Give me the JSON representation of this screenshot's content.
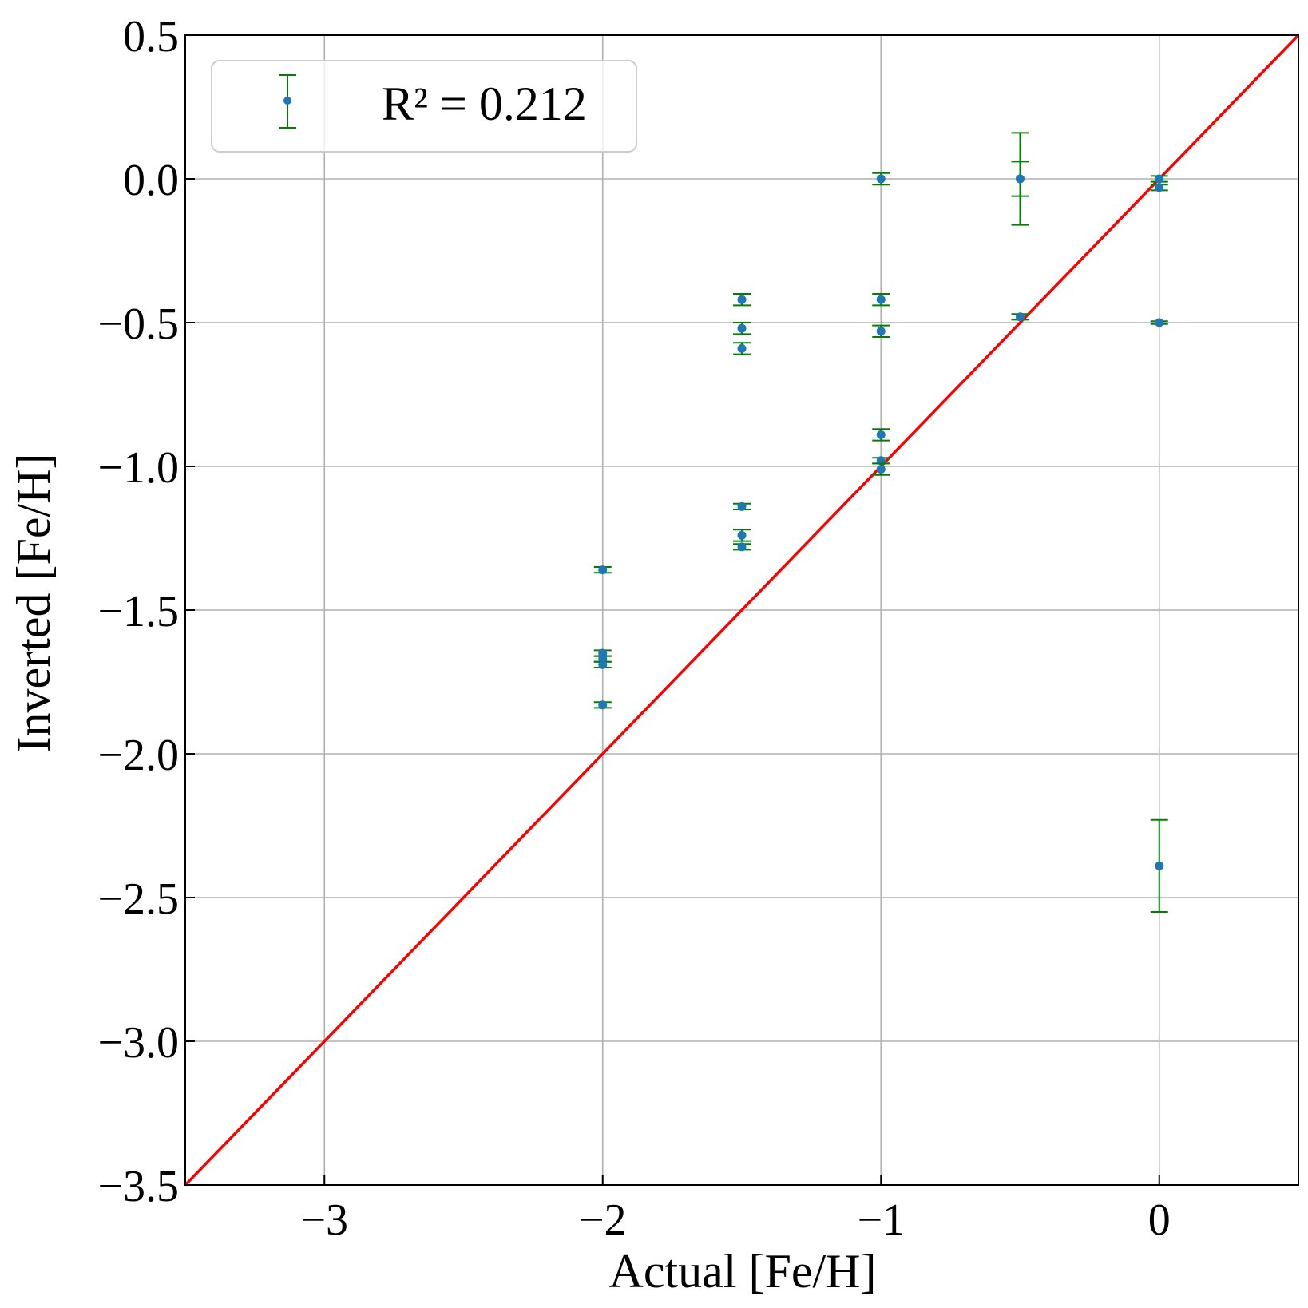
{
  "chart_data": {
    "type": "scatter",
    "xlabel": "Actual [Fe/H]",
    "ylabel": "Inverted [Fe/H]",
    "xlim": [
      -3.5,
      0.5
    ],
    "ylim": [
      -3.5,
      0.5
    ],
    "x_ticks": [
      -3,
      -2,
      -1,
      0
    ],
    "x_tick_labels": [
      "−3",
      "−2",
      "−1",
      "0"
    ],
    "y_ticks": [
      0.5,
      0.0,
      -0.5,
      -1.0,
      -1.5,
      -2.0,
      -2.5,
      -3.0,
      -3.5
    ],
    "y_tick_labels": [
      "0.5",
      "0.0",
      "−0.5",
      "−1.0",
      "−1.5",
      "−2.0",
      "−2.5",
      "−3.0",
      "−3.5"
    ],
    "grid": true,
    "legend": {
      "placement": "top-left",
      "entries": [
        "R² = 0.212"
      ]
    },
    "reference_line": {
      "from": [
        -3.5,
        -3.5
      ],
      "to": [
        0.5,
        0.5
      ],
      "color": "#ff0000"
    },
    "series": [
      {
        "marker_color": "#1f77b4",
        "errorbar_color": "#008000",
        "points": [
          {
            "x": -2.0,
            "y": -1.36,
            "err": 0.01
          },
          {
            "x": -2.0,
            "y": -1.65,
            "err": 0.01
          },
          {
            "x": -2.0,
            "y": -1.67,
            "err": 0.01
          },
          {
            "x": -2.0,
            "y": -1.69,
            "err": 0.01
          },
          {
            "x": -2.0,
            "y": -1.83,
            "err": 0.01
          },
          {
            "x": -1.5,
            "y": -0.42,
            "err": 0.02
          },
          {
            "x": -1.5,
            "y": -0.52,
            "err": 0.02
          },
          {
            "x": -1.5,
            "y": -0.59,
            "err": 0.02
          },
          {
            "x": -1.5,
            "y": -1.14,
            "err": 0.01
          },
          {
            "x": -1.5,
            "y": -1.24,
            "err": 0.02
          },
          {
            "x": -1.5,
            "y": -1.28,
            "err": 0.01
          },
          {
            "x": -1.0,
            "y": 0.0,
            "err": 0.02
          },
          {
            "x": -1.0,
            "y": -0.42,
            "err": 0.02
          },
          {
            "x": -1.0,
            "y": -0.53,
            "err": 0.02
          },
          {
            "x": -1.0,
            "y": -0.89,
            "err": 0.02
          },
          {
            "x": -1.0,
            "y": -0.98,
            "err": 0.01
          },
          {
            "x": -1.0,
            "y": -1.01,
            "err": 0.02
          },
          {
            "x": -0.5,
            "y": 0.0,
            "err": 0.16
          },
          {
            "x": -0.5,
            "y": 0.0,
            "err": 0.06
          },
          {
            "x": -0.5,
            "y": -0.48,
            "err": 0.01
          },
          {
            "x": 0.0,
            "y": 0.0,
            "err": 0.01
          },
          {
            "x": 0.0,
            "y": -0.03,
            "err": 0.01
          },
          {
            "x": 0.0,
            "y": -0.5,
            "err": 0.005
          },
          {
            "x": 0.0,
            "y": -2.39,
            "err": 0.16
          }
        ]
      }
    ]
  }
}
